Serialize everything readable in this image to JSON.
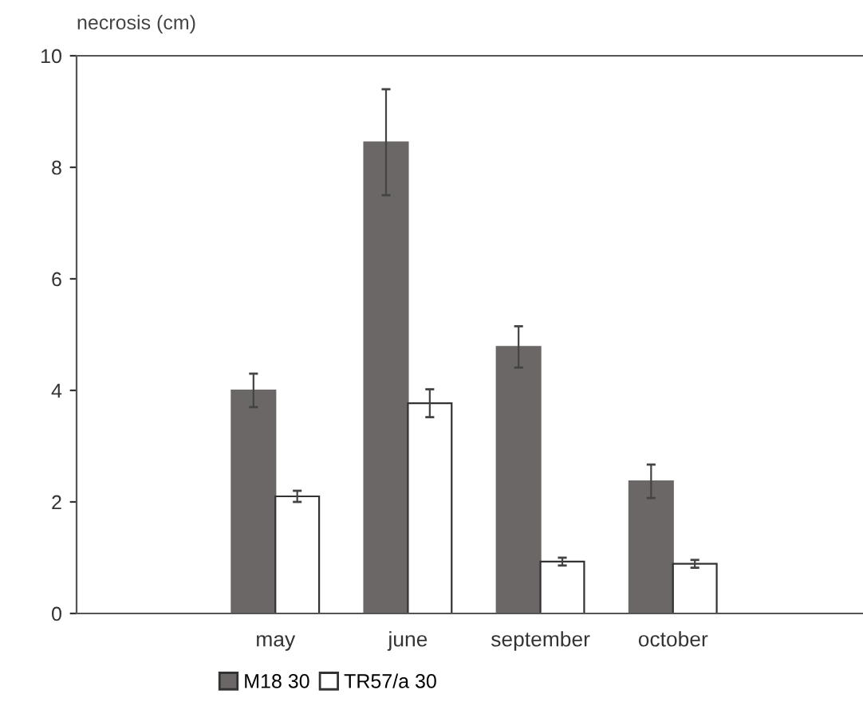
{
  "chart_data": {
    "type": "bar",
    "ylabel": "necrosis (cm)",
    "categories": [
      "may",
      "june",
      "september",
      "october"
    ],
    "series": [
      {
        "name": "M18 30",
        "color": "#6b6766",
        "values": [
          4.0,
          8.45,
          4.78,
          2.37
        ],
        "errors": [
          0.3,
          0.95,
          0.37,
          0.3
        ]
      },
      {
        "name": "TR57/a 30",
        "color": "#ffffff",
        "values": [
          2.1,
          3.77,
          0.93,
          0.89
        ],
        "errors": [
          0.1,
          0.25,
          0.07,
          0.07
        ]
      }
    ],
    "ylim": [
      0,
      10
    ],
    "yticks": [
      0,
      2,
      4,
      6,
      8,
      10
    ],
    "grid": false,
    "legend": "bottom"
  }
}
